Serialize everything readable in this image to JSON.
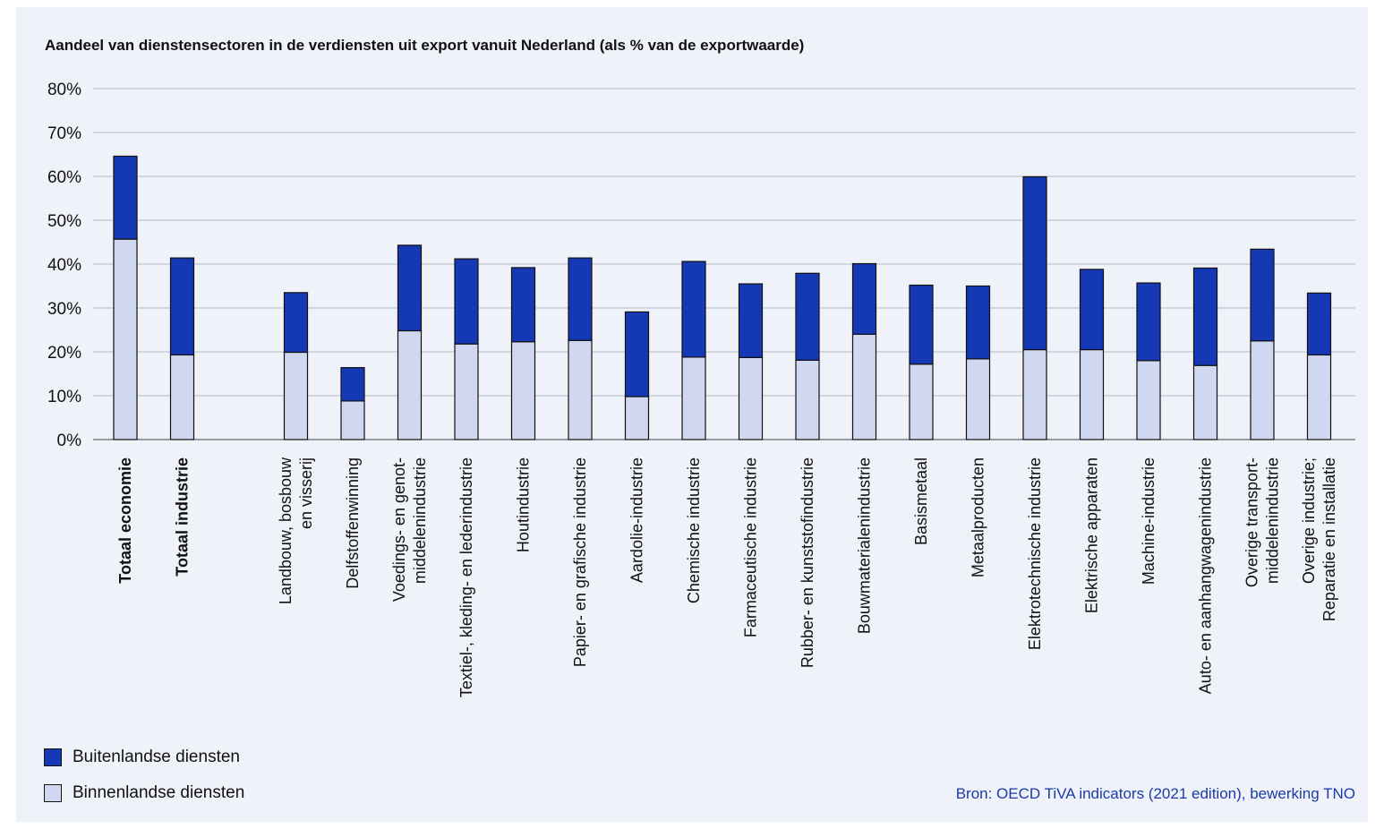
{
  "chart_data": {
    "type": "bar",
    "stacked": true,
    "title": "Aandeel van dienstensectoren in de verdiensten uit export vanuit Nederland  (als % van de exportwaarde)",
    "ylim": [
      0,
      80
    ],
    "yticks": [
      "0%",
      "10%",
      "20%",
      "30%",
      "40%",
      "50%",
      "60%",
      "70%",
      "80%"
    ],
    "grid": true,
    "legend_position": "bottom-left",
    "categories": [
      {
        "lines": [
          "Totaal economie"
        ],
        "bold": true
      },
      {
        "lines": [
          "Totaal industrie"
        ],
        "bold": true
      },
      {
        "lines": [],
        "gap": true
      },
      {
        "lines": [
          "Landbouw, bosbouw",
          "en visserij"
        ]
      },
      {
        "lines": [
          "Delfstoffenwinning"
        ]
      },
      {
        "lines": [
          "Voedings- en genot-",
          "middelenindustrie"
        ]
      },
      {
        "lines": [
          "Textiel-, kleding- en lederindustrie"
        ]
      },
      {
        "lines": [
          "Houtindustrie"
        ]
      },
      {
        "lines": [
          "Papier- en grafische industrie"
        ]
      },
      {
        "lines": [
          "Aardolie-industrie"
        ]
      },
      {
        "lines": [
          "Chemische industrie"
        ]
      },
      {
        "lines": [
          "Farmaceutische industrie"
        ]
      },
      {
        "lines": [
          "Rubber- en kunststofindustrie"
        ]
      },
      {
        "lines": [
          "Bouwmaterialenindustrie"
        ]
      },
      {
        "lines": [
          "Basismetaal"
        ]
      },
      {
        "lines": [
          "Metaalproducten"
        ]
      },
      {
        "lines": [
          "Elektrotechnische industrie"
        ]
      },
      {
        "lines": [
          "Elektrische apparaten"
        ]
      },
      {
        "lines": [
          "Machine-industrie"
        ]
      },
      {
        "lines": [
          "Auto- en aanhangwagenindustrie"
        ]
      },
      {
        "lines": [
          "Overige transport-",
          "middelenindustrie"
        ]
      },
      {
        "lines": [
          "Overige industrie;",
          "Reparatie en installatie"
        ]
      }
    ],
    "series": [
      {
        "name": "Binnenlandse diensten",
        "color": "#d0d7f0",
        "values": [
          45.7,
          19.3,
          null,
          19.9,
          8.8,
          24.8,
          21.8,
          22.3,
          22.6,
          9.8,
          18.8,
          18.7,
          18.1,
          24.0,
          17.2,
          18.4,
          20.5,
          20.5,
          18.0,
          16.9,
          22.5,
          19.3
        ]
      },
      {
        "name": "Buitenlandse diensten",
        "color": "#1538b4",
        "values": [
          18.9,
          22.1,
          null,
          13.6,
          7.6,
          19.5,
          19.4,
          16.9,
          18.8,
          19.3,
          21.8,
          16.8,
          19.8,
          16.1,
          18.0,
          16.6,
          39.4,
          18.3,
          17.7,
          22.2,
          20.9,
          14.1
        ]
      }
    ]
  },
  "legend": {
    "items": [
      {
        "label": "Buitenlandse diensten",
        "color": "#1538b4"
      },
      {
        "label": "Binnenlandse diensten",
        "color": "#d0d7f0"
      }
    ]
  },
  "source": "Bron: OECD TiVA indicators (2021 edition), bewerking TNO"
}
